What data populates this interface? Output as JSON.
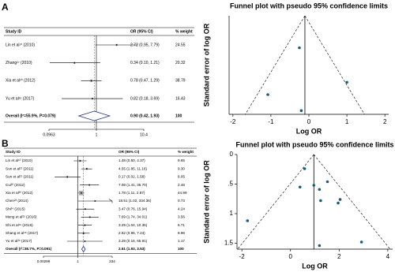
{
  "chart_data": [
    {
      "type": "forest",
      "panel": "A",
      "columns": [
        "Study ID",
        "OR (95% CI)",
        "% weight"
      ],
      "studies": [
        "Lin et al¹⁰ (2010)",
        "Zhang²⁷ (2010)",
        "Xia et al²⁰ (2012)",
        "Yu et al²⁶ (2017)"
      ],
      "values": [
        2.72,
        0.34,
        0.78,
        0.82
      ],
      "lower": [
        0.95,
        0.1,
        0.47,
        0.18
      ],
      "upper": [
        7.79,
        1.21,
        1.29,
        3.69
      ],
      "ci_labels": [
        "2.72 (0.95, 7.79)",
        "0.34 (0.10, 1.21)",
        "0.78 (0.47, 1.29)",
        "0.82 (0.18, 3.69)"
      ],
      "weights": [
        24.55,
        20.32,
        38.79,
        16.43
      ],
      "weight_labels": [
        "24.55",
        "20.32",
        "38.79",
        "16.43"
      ],
      "overall": {
        "label": "Overall (I²=55.9%, P=0.079)",
        "value": 0.9,
        "lower": 0.42,
        "upper": 1.93,
        "ci_label": "0.90 (0.42, 1.93)",
        "weight": 100
      },
      "log_scale": true,
      "reference_line": 1,
      "xlim": [
        0.0963,
        10.4
      ],
      "xticks": [
        0.0963,
        1,
        10.4
      ]
    },
    {
      "type": "funnel",
      "title": "Funnel plot with pseudo 95% confidence limits",
      "xlabel": "Log OR",
      "ylabel": "Standard error of log OR",
      "x": [
        1.0,
        -1.08,
        -0.25,
        -0.2
      ],
      "y": [
        0.54,
        0.64,
        0.26,
        0.77
      ],
      "pooled": -0.105,
      "color": "#1d5a7a",
      "xlim": [
        -2.1,
        2.1
      ],
      "xticks": [
        -2,
        -1,
        0,
        1,
        2
      ],
      "ylim": [
        0,
        0.8
      ]
    },
    {
      "type": "forest",
      "panel": "B",
      "columns": [
        "Study ID",
        "OR (95% CI)",
        "% weight"
      ],
      "studies": [
        "Lin et al¹⁰ (2010)",
        "Sun et al²¹ (2011)",
        "Sun et al²¹ (2011)",
        "Cui²² (2012)",
        "Xia et al²⁰ (2012)",
        "Chen²³ (2014)",
        "Shi²⁴ (2015)",
        "Meng et al²⁵ (2016)",
        "Shi et al¹⁹ (2016)",
        "Shang et al¹⁸ (2017)",
        "Yu et al²⁶ (2017)"
      ],
      "values": [
        1.48,
        4.55,
        0.17,
        7.08,
        1.78,
        18.51,
        3.47,
        7.69,
        3.29,
        2.62,
        3.29
      ],
      "lower": [
        0.5,
        1.85,
        0.02,
        1.41,
        1.11,
        1.02,
        0.76,
        1.74,
        1.04,
        0.96,
        0.16
      ],
      "upper": [
        4.37,
        11.16,
        1.58,
        35.7,
        2.87,
        334.36,
        15.94,
        34.01,
        10.35,
        7.24,
        65.91
      ],
      "ci_labels": [
        "1.48 (0.50, 4.37)",
        "4.55 (1.85, 11.16)",
        "0.17 (0.02, 1.58)",
        "7.08 (1.41, 35.70)",
        "1.78 (1.11, 2.87)",
        "18.51 (1.02, 334.36)",
        "3.47 (0.76, 15.94)",
        "7.69 (1.74, 34.01)",
        "3.29 (1.04, 10.35)",
        "2.62 (0.96, 7.24)",
        "3.29 (0.16, 65.91)"
      ],
      "weights": [
        9.65,
        9.3,
        8.05,
        2.46,
        44.99,
        0.73,
        4.24,
        3.56,
        6.71,
        8.96,
        1.17
      ],
      "weight_labels": [
        "9.65",
        "9.30",
        "8.05",
        "2.46",
        "44.99",
        "0.73",
        "4.24",
        "3.56",
        "6.71",
        "8.96",
        "1.17"
      ],
      "overall": {
        "label": "Overall (I²=38.7%, P=0.091)",
        "value": 2.61,
        "lower": 1.93,
        "upper": 3.53,
        "ci_label": "2.61 (1.93, 3.53)",
        "weight": 100
      },
      "log_scale": true,
      "reference_line": 1,
      "xlim": [
        0.00299,
        334
      ],
      "xticks": [
        0.00299,
        1,
        334
      ]
    },
    {
      "type": "funnel",
      "title": "Funnel plot with pseudo 95% confidence limits",
      "xlabel": "Log OR",
      "ylabel": "Standard error of log OR",
      "x": [
        0.39,
        1.52,
        -1.77,
        1.96,
        0.58,
        2.92,
        1.24,
        2.04,
        1.19,
        0.96,
        1.19
      ],
      "y": [
        0.55,
        0.46,
        1.12,
        0.82,
        0.24,
        1.48,
        0.78,
        0.76,
        0.59,
        0.52,
        1.54
      ],
      "pooled": 0.96,
      "color": "#1d5a7a",
      "xlim": [
        -2.2,
        4.2
      ],
      "xticks": [
        -2,
        0,
        2,
        4
      ],
      "ylim": [
        0,
        1.6
      ],
      "yticks": [
        0,
        {
          "value": 0.5,
          "label": ".5"
        },
        1,
        1.5
      ]
    }
  ]
}
